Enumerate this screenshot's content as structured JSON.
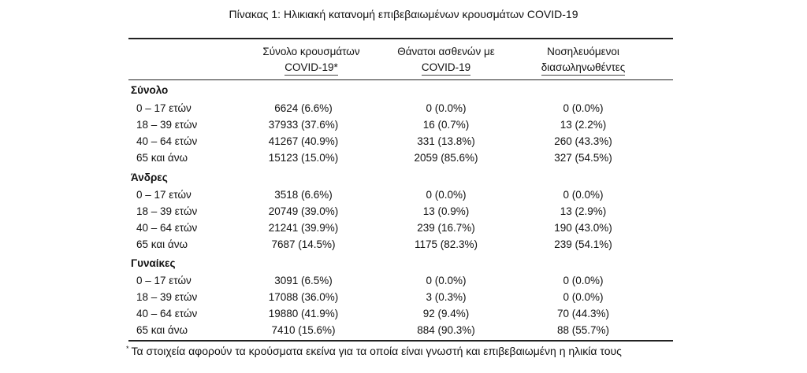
{
  "title": "Πίνακας 1: Ηλικιακή κατανομή επιβεβαιωμένων κρουσμάτων COVID-19",
  "columns": [
    {
      "line1": "Σύνολο κρουσμάτων",
      "line2": "COVID-19*"
    },
    {
      "line1": "Θάνατοι ασθενών με",
      "line2": "COVID-19"
    },
    {
      "line1": "Νοσηλευόμενοι",
      "line2": "διασωληνωθέντες"
    }
  ],
  "groups": [
    {
      "name": "Σύνολο",
      "rows": [
        {
          "age": "0 – 17 ετών",
          "cases": "6624 (6.6%)",
          "deaths": "0 (0.0%)",
          "intubated": "0 (0.0%)"
        },
        {
          "age": "18 – 39 ετών",
          "cases": "37933 (37.6%)",
          "deaths": "16 (0.7%)",
          "intubated": "13 (2.2%)"
        },
        {
          "age": "40 – 64 ετών",
          "cases": "41267 (40.9%)",
          "deaths": "331 (13.8%)",
          "intubated": "260 (43.3%)"
        },
        {
          "age": "65 και άνω",
          "cases": "15123 (15.0%)",
          "deaths": "2059 (85.6%)",
          "intubated": "327 (54.5%)"
        }
      ]
    },
    {
      "name": "Άνδρες",
      "rows": [
        {
          "age": "0 – 17 ετών",
          "cases": "3518 (6.6%)",
          "deaths": "0 (0.0%)",
          "intubated": "0 (0.0%)"
        },
        {
          "age": "18 – 39 ετών",
          "cases": "20749 (39.0%)",
          "deaths": "13 (0.9%)",
          "intubated": "13 (2.9%)"
        },
        {
          "age": "40 – 64 ετών",
          "cases": "21241 (39.9%)",
          "deaths": "239 (16.7%)",
          "intubated": "190 (43.0%)"
        },
        {
          "age": "65 και άνω",
          "cases": "7687 (14.5%)",
          "deaths": "1175 (82.3%)",
          "intubated": "239 (54.1%)"
        }
      ]
    },
    {
      "name": "Γυναίκες",
      "rows": [
        {
          "age": "0 – 17 ετών",
          "cases": "3091 (6.5%)",
          "deaths": "0 (0.0%)",
          "intubated": "0 (0.0%)"
        },
        {
          "age": "18 – 39 ετών",
          "cases": "17088 (36.0%)",
          "deaths": "3 (0.3%)",
          "intubated": "0 (0.0%)"
        },
        {
          "age": "40 – 64 ετών",
          "cases": "19880 (41.9%)",
          "deaths": "92 (9.4%)",
          "intubated": "70 (44.3%)"
        },
        {
          "age": "65 και άνω",
          "cases": "7410 (15.6%)",
          "deaths": "884 (90.3%)",
          "intubated": "88 (55.7%)"
        }
      ]
    }
  ],
  "footnote": {
    "marker": "*",
    "text": "Τα στοιχεία αφορούν τα κρούσματα εκείνα για τα οποία είναι γνωστή και επιβεβαιωμένη η ηλικία τους"
  }
}
